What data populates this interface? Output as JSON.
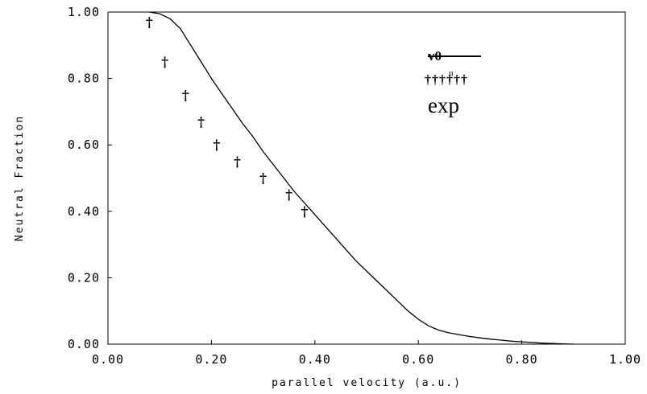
{
  "chart_data": {
    "type": "line",
    "title": "",
    "xlabel": "parallel velocity (a.u.)",
    "ylabel": "Neutral Fraction",
    "xlim": [
      0.0,
      1.0
    ],
    "ylim": [
      0.0,
      1.0
    ],
    "x_ticks": [
      "0.00",
      "0.20",
      "0.40",
      "0.60",
      "0.80",
      "1.00"
    ],
    "y_ticks": [
      "0.00",
      "0.20",
      "0.40",
      "0.60",
      "0.80",
      "1.00"
    ],
    "grid": false,
    "legend_position": "top-right",
    "series": [
      {
        "name": "v0",
        "style": "line",
        "color": "#000000",
        "x": [
          0.08,
          0.1,
          0.12,
          0.14,
          0.16,
          0.18,
          0.2,
          0.22,
          0.24,
          0.26,
          0.28,
          0.3,
          0.32,
          0.34,
          0.36,
          0.38,
          0.4,
          0.42,
          0.44,
          0.46,
          0.48,
          0.5,
          0.52,
          0.54,
          0.56,
          0.58,
          0.6,
          0.62,
          0.64,
          0.66,
          0.68,
          0.7,
          0.72,
          0.74,
          0.76,
          0.78,
          0.8,
          0.82,
          0.84,
          0.86,
          0.88,
          0.9
        ],
        "y": [
          1.0,
          0.995,
          0.98,
          0.95,
          0.9,
          0.85,
          0.8,
          0.755,
          0.71,
          0.665,
          0.625,
          0.58,
          0.54,
          0.5,
          0.46,
          0.425,
          0.39,
          0.355,
          0.32,
          0.285,
          0.25,
          0.22,
          0.19,
          0.16,
          0.13,
          0.1,
          0.075,
          0.055,
          0.042,
          0.034,
          0.028,
          0.023,
          0.019,
          0.015,
          0.012,
          0.009,
          0.007,
          0.005,
          0.003,
          0.002,
          0.001,
          0.0
        ]
      },
      {
        "name": "exp",
        "style": "marker",
        "marker": "†",
        "color": "#000000",
        "x": [
          0.08,
          0.11,
          0.15,
          0.18,
          0.21,
          0.25,
          0.3,
          0.35,
          0.38
        ],
        "y": [
          0.97,
          0.85,
          0.75,
          0.67,
          0.6,
          0.55,
          0.5,
          0.45,
          0.4
        ]
      }
    ],
    "legend": {
      "line_label": "v0",
      "line_label_sub": "u",
      "marker_row": "††††††",
      "exp_label": "exp"
    }
  }
}
